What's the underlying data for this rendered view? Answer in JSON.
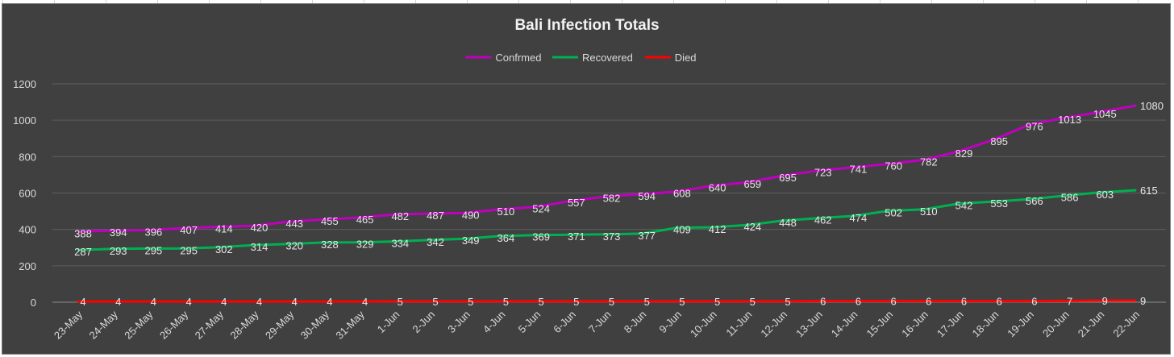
{
  "chart_data": {
    "type": "line",
    "title": "Bali Infection Totals",
    "categories": [
      "23-May",
      "24-May",
      "25-May",
      "26-May",
      "27-May",
      "28-May",
      "29-May",
      "30-May",
      "31-May",
      "1-Jun",
      "2-Jun",
      "3-Jun",
      "4-Jun",
      "5-Jun",
      "6-Jun",
      "7-Jun",
      "8-Jun",
      "9-Jun",
      "10-Jun",
      "11-Jun",
      "12-Jun",
      "13-Jun",
      "14-Jun",
      "15-Jun",
      "16-Jun",
      "17-Jun",
      "18-Jun",
      "19-Jun",
      "20-Jun",
      "21-Jun",
      "22-Jun"
    ],
    "series": [
      {
        "name": "Confrmed",
        "color": "#c000c0",
        "values": [
          388,
          394,
          396,
          407,
          414,
          420,
          443,
          455,
          465,
          482,
          487,
          490,
          510,
          524,
          557,
          582,
          594,
          608,
          640,
          659,
          695,
          723,
          741,
          760,
          782,
          829,
          895,
          976,
          1013,
          1045,
          1080
        ]
      },
      {
        "name": "Recovered",
        "color": "#00b050",
        "values": [
          287,
          293,
          295,
          295,
          302,
          314,
          320,
          328,
          329,
          334,
          342,
          349,
          364,
          369,
          371,
          373,
          377,
          409,
          412,
          424,
          448,
          462,
          474,
          502,
          510,
          542,
          553,
          566,
          586,
          603,
          615
        ]
      },
      {
        "name": "Died",
        "color": "#ff0000",
        "values": [
          4,
          4,
          4,
          4,
          4,
          4,
          4,
          4,
          4,
          5,
          5,
          5,
          5,
          5,
          5,
          5,
          5,
          5,
          5,
          5,
          5,
          6,
          6,
          6,
          6,
          6,
          6,
          6,
          7,
          9,
          9
        ]
      }
    ],
    "yticks": [
      0,
      200,
      400,
      600,
      800,
      1000,
      1200
    ],
    "ylim": [
      0,
      1200
    ],
    "grid": true,
    "legend": "top",
    "data_labels": true
  }
}
